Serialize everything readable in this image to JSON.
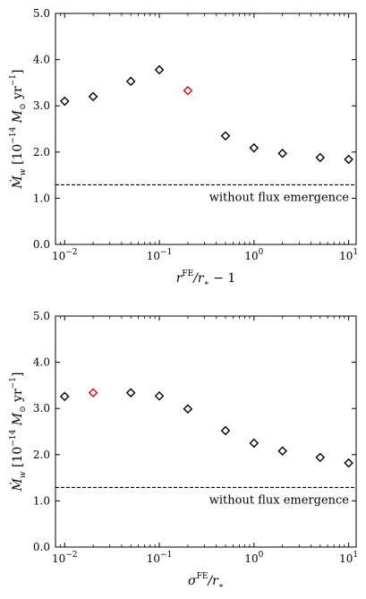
{
  "chart_data": [
    {
      "type": "scatter",
      "xscale": "log",
      "xlim": [
        0.008,
        12
      ],
      "ylim": [
        0.0,
        5.0
      ],
      "xticks": [
        {
          "value": 0.01,
          "base": "10",
          "exp": "−2"
        },
        {
          "value": 0.1,
          "base": "10",
          "exp": "−1"
        },
        {
          "value": 1,
          "base": "10",
          "exp": "0"
        },
        {
          "value": 10,
          "base": "10",
          "exp": "1"
        }
      ],
      "yticks": [
        "0.0",
        "1.0",
        "2.0",
        "3.0",
        "4.0",
        "5.0"
      ],
      "xlabel": {
        "main": "r",
        "sup": "FE",
        "rest": "/r",
        "sub": "∗",
        "tail": " − 1"
      },
      "ylabel": "Ṁ_w [10^−14 M_⊙ yr^−1]",
      "ylabel_parts": {
        "lead": "Ṁ",
        "sub": "w",
        "open": " [10",
        "exp": "−14",
        "mid": " M",
        "sun": "⊙",
        "yr": " yr",
        "exp2": "−1",
        "close": "]"
      },
      "grid": false,
      "series": [
        {
          "marker": "diamond",
          "color": "#000000",
          "x": [
            0.01,
            0.02,
            0.05,
            0.1,
            0.5,
            1,
            2,
            5,
            10
          ],
          "y": [
            3.1,
            3.2,
            3.53,
            3.78,
            2.35,
            2.09,
            1.97,
            1.88,
            1.84
          ]
        },
        {
          "marker": "diamond",
          "color": "#e8000b",
          "x": [
            0.2
          ],
          "y": [
            3.33
          ]
        }
      ],
      "reference_line": {
        "y": 1.29,
        "style": "dashed",
        "label": "without flux emergence"
      }
    },
    {
      "type": "scatter",
      "xscale": "log",
      "xlim": [
        0.008,
        12
      ],
      "ylim": [
        0.0,
        5.0
      ],
      "xticks": [
        {
          "value": 0.01,
          "base": "10",
          "exp": "−2"
        },
        {
          "value": 0.1,
          "base": "10",
          "exp": "−1"
        },
        {
          "value": 1,
          "base": "10",
          "exp": "0"
        },
        {
          "value": 10,
          "base": "10",
          "exp": "1"
        }
      ],
      "yticks": [
        "0.0",
        "1.0",
        "2.0",
        "3.0",
        "4.0",
        "5.0"
      ],
      "xlabel": {
        "main": "σ",
        "sup": "FE",
        "rest": "/r",
        "sub": "∗",
        "tail": ""
      },
      "ylabel": "Ṁ_w [10^−14 M_⊙ yr^−1]",
      "ylabel_parts": {
        "lead": "Ṁ",
        "sub": "w",
        "open": " [10",
        "exp": "−14",
        "mid": " M",
        "sun": "⊙",
        "yr": " yr",
        "exp2": "−1",
        "close": "]"
      },
      "grid": false,
      "series": [
        {
          "marker": "diamond",
          "color": "#000000",
          "x": [
            0.01,
            0.05,
            0.1,
            0.2,
            0.5,
            1,
            2,
            5,
            10
          ],
          "y": [
            3.26,
            3.34,
            3.27,
            2.99,
            2.52,
            2.25,
            2.08,
            1.94,
            1.82
          ]
        },
        {
          "marker": "diamond",
          "color": "#e8000b",
          "x": [
            0.02
          ],
          "y": [
            3.34
          ]
        }
      ],
      "reference_line": {
        "y": 1.29,
        "style": "dashed",
        "label": "without flux emergence"
      }
    }
  ]
}
